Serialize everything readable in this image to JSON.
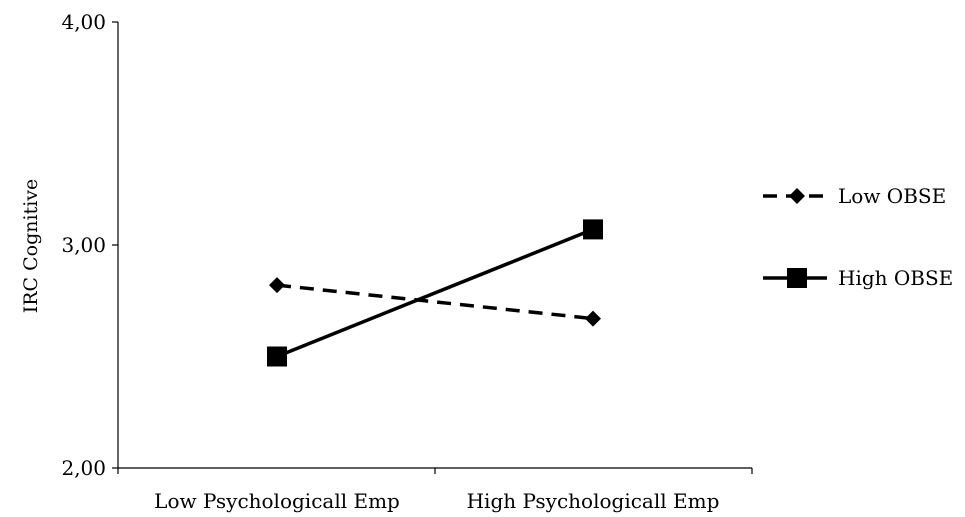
{
  "chart_data": {
    "type": "line",
    "ylabel": "IRC Cognitive",
    "xlabel": "",
    "categories": [
      "Low Psychologicall Emp",
      "High Psychologicall Emp"
    ],
    "ylim": [
      2.0,
      4.0
    ],
    "yticks": [
      "2,00",
      "3,00",
      "4,00"
    ],
    "ytick_values": [
      2.0,
      3.0,
      4.0
    ],
    "grid": false,
    "legend_position": "right",
    "series": [
      {
        "name": "Low OBSE",
        "values": [
          2.82,
          2.67
        ],
        "marker": "diamond",
        "dash": "dashed",
        "color": "#000000"
      },
      {
        "name": "High OBSE",
        "values": [
          2.5,
          3.07
        ],
        "marker": "square",
        "dash": "solid",
        "color": "#000000"
      }
    ]
  }
}
